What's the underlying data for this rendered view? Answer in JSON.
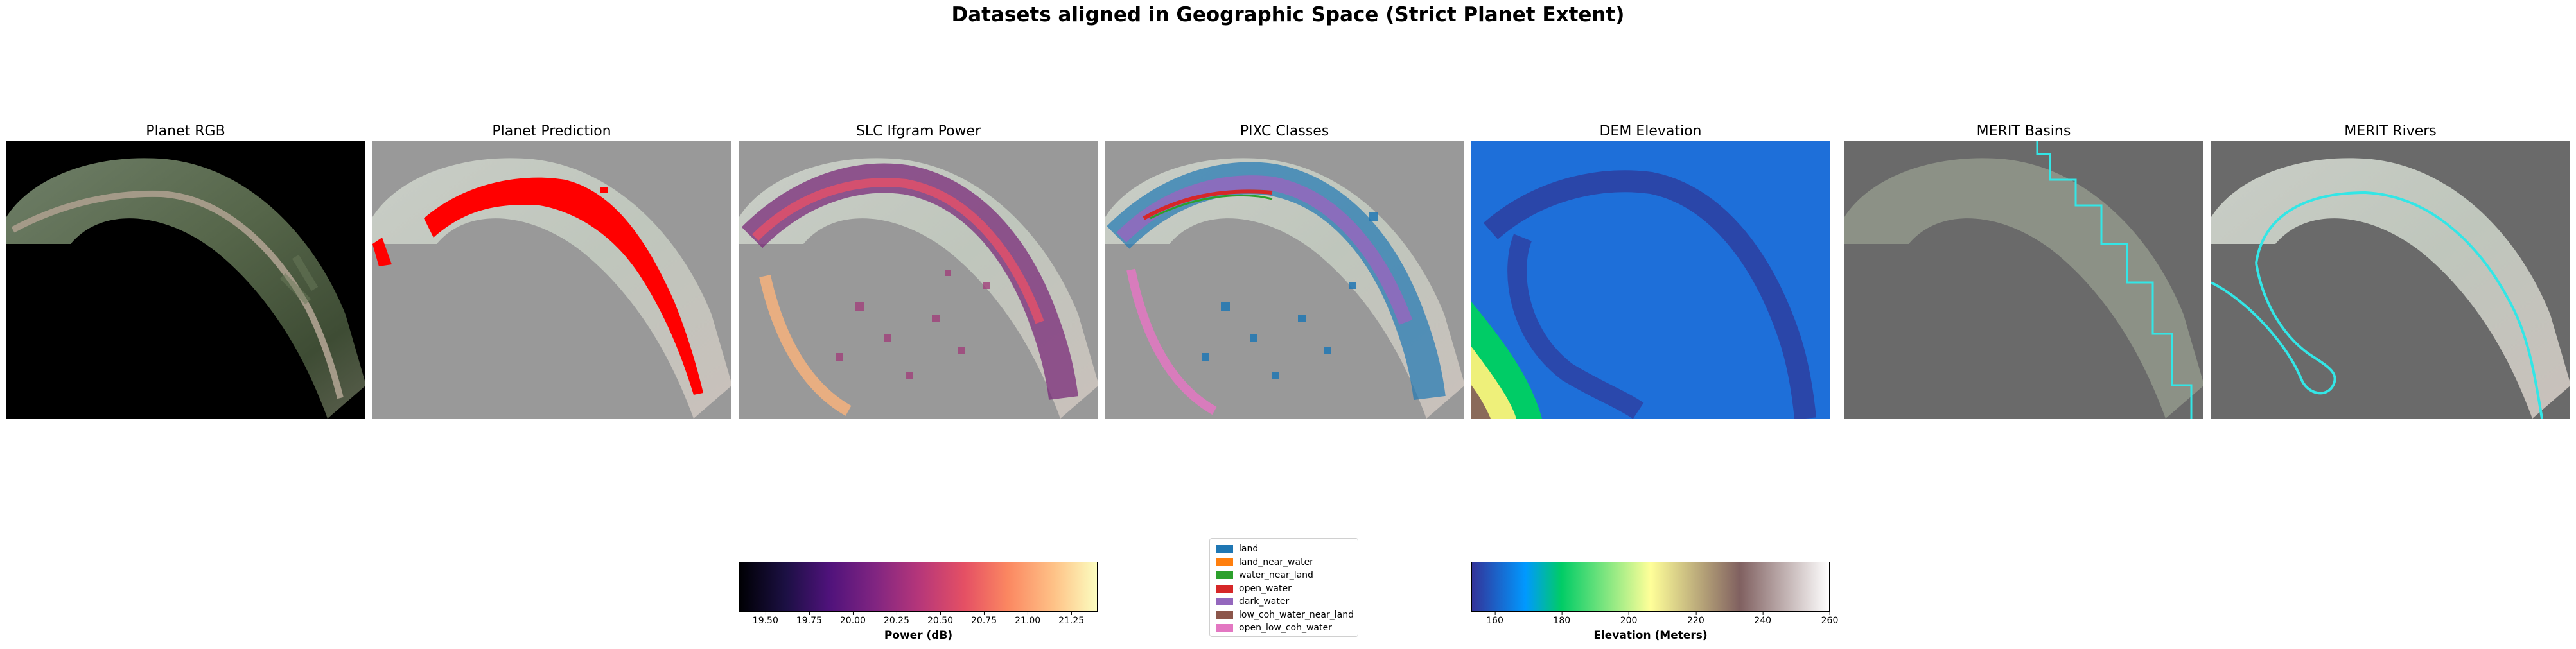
{
  "suptitle": "Datasets aligned in Geographic Space (Strict Planet Extent)",
  "colors": {
    "river_mask": "#ff0000",
    "merit_line": "#33e6e6",
    "background_black": "#000000",
    "nodata_gray": "#999999",
    "nodata_dark_gray": "#6a6a6a"
  },
  "chart_data": [
    {
      "type": "heatmap",
      "title": "Planet RGB"
    },
    {
      "type": "heatmap",
      "title": "Planet Prediction"
    },
    {
      "type": "heatmap",
      "title": "SLC Ifgram Power",
      "colormap": "magma",
      "colorbar": {
        "label": "Power (dB)",
        "range": [
          19.35,
          21.4
        ],
        "ticks": [
          "19.50",
          "19.75",
          "20.00",
          "20.25",
          "20.50",
          "20.75",
          "21.00",
          "21.25"
        ],
        "tick_values": [
          19.5,
          19.75,
          20.0,
          20.25,
          20.5,
          20.75,
          21.0,
          21.25
        ]
      }
    },
    {
      "type": "heatmap",
      "title": "PIXC Classes",
      "legend": {
        "placement": "below",
        "entries": [
          {
            "label": "land",
            "color": "#1f77b4"
          },
          {
            "label": "land_near_water",
            "color": "#ff7f0e"
          },
          {
            "label": "water_near_land",
            "color": "#2ca02c"
          },
          {
            "label": "open_water",
            "color": "#d62728"
          },
          {
            "label": "dark_water",
            "color": "#9467bd"
          },
          {
            "label": "low_coh_water_near_land",
            "color": "#8c564b"
          },
          {
            "label": "open_low_coh_water",
            "color": "#e377c2"
          }
        ]
      }
    },
    {
      "type": "heatmap",
      "title": "DEM Elevation",
      "colormap": "terrain",
      "colorbar": {
        "label": "Elevation (Meters)",
        "range": [
          153,
          260
        ],
        "ticks": [
          "160",
          "180",
          "200",
          "220",
          "240",
          "260"
        ],
        "tick_values": [
          160,
          180,
          200,
          220,
          240,
          260
        ]
      }
    },
    {
      "type": "heatmap",
      "title": "MERIT Basins"
    },
    {
      "type": "heatmap",
      "title": "MERIT Rivers"
    }
  ]
}
